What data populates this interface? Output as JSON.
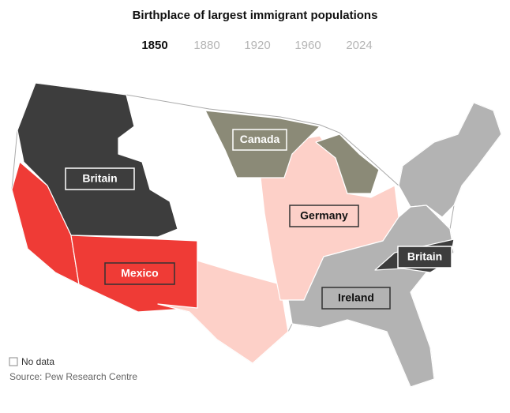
{
  "title": "Birthplace of largest immigrant populations",
  "years": [
    {
      "label": "1850",
      "active": true
    },
    {
      "label": "1880",
      "active": false
    },
    {
      "label": "1920",
      "active": false
    },
    {
      "label": "1960",
      "active": false
    },
    {
      "label": "2024",
      "active": false
    }
  ],
  "regions": [
    {
      "label": "Britain",
      "color": "#3d3d3d",
      "text_color": "#ffffff"
    },
    {
      "label": "Canada",
      "color": "#8b8a77",
      "text_color": "#ffffff"
    },
    {
      "label": "Germany",
      "color": "#fdd0c8",
      "text_color": "#111111"
    },
    {
      "label": "Mexico",
      "color": "#ef3b36",
      "text_color": "#ffffff"
    },
    {
      "label": "Britain",
      "color": "#3d3d3d",
      "text_color": "#ffffff"
    },
    {
      "label": "Ireland",
      "color": "#b3b3b3",
      "text_color": "#111111"
    }
  ],
  "legend": {
    "label": "No data"
  },
  "source": "Source: Pew Research Centre"
}
